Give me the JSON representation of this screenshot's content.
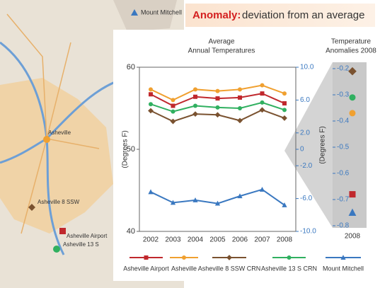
{
  "banner": {
    "term": "Anomaly:",
    "definition": "deviation from an average"
  },
  "map": {
    "labels": [
      "Mount Mitchell",
      "Asheville",
      "Asheville 8 SSW",
      "Asheville Airport",
      "Asheville 13 S"
    ]
  },
  "chart_data": [
    {
      "type": "line",
      "title": [
        "Average",
        "Annual Temperatures"
      ],
      "y_label": "(Degrees F)",
      "categories": [
        "2002",
        "2003",
        "2004",
        "2005",
        "2006",
        "2007",
        "2008"
      ],
      "ylim": [
        40,
        60
      ],
      "yticks": [
        40,
        50,
        60
      ],
      "y2lim": [
        -10,
        10
      ],
      "y2ticks": [
        {
          "value": 10,
          "label": "10.0"
        },
        {
          "value": 6,
          "label": "6.0"
        },
        {
          "value": 2,
          "label": "2.0"
        },
        0,
        {
          "value": -2,
          "label": "-2.0"
        },
        {
          "value": -6,
          "label": "-6.0"
        },
        {
          "value": -10,
          "label": "-10.0"
        }
      ],
      "series": [
        {
          "name": "Asheville Airport",
          "color": "#c0282d",
          "marker": "square",
          "values": [
            56.7,
            55.3,
            56.4,
            56.2,
            56.3,
            56.8,
            55.6
          ]
        },
        {
          "name": "Asheville",
          "color": "#f0a030",
          "marker": "circle",
          "values": [
            57.3,
            56.0,
            57.3,
            57.1,
            57.3,
            57.8,
            56.8
          ]
        },
        {
          "name": "Asheville 8 SSW CRN",
          "color": "#7a5230",
          "marker": "diamond",
          "values": [
            54.7,
            53.4,
            54.3,
            54.2,
            53.5,
            54.8,
            53.8
          ]
        },
        {
          "name": "Asheville 13 S CRN",
          "color": "#30b060",
          "marker": "circle",
          "values": [
            55.5,
            54.6,
            55.3,
            55.1,
            55.0,
            55.7,
            54.8
          ]
        },
        {
          "name": "Mount Mitchell",
          "color": "#3a78c0",
          "marker": "triangle",
          "values": [
            44.8,
            43.5,
            43.8,
            43.4,
            44.3,
            45.1,
            43.2
          ]
        }
      ]
    },
    {
      "type": "dot",
      "title": [
        "Temperature",
        "Anomalies 2008"
      ],
      "y_label": "(Degrees F)",
      "categories": [
        "2008"
      ],
      "ylim": [
        -0.8,
        -0.2
      ],
      "yticks": [
        -0.2,
        -0.3,
        -0.4,
        -0.5,
        -0.6,
        -0.7,
        -0.8
      ],
      "series": [
        {
          "color": "#7a5230",
          "marker": "diamond",
          "values": [
            -0.21
          ]
        },
        {
          "color": "#30b060",
          "marker": "circle",
          "values": [
            -0.31
          ]
        },
        {
          "color": "#f0a030",
          "marker": "circle",
          "values": [
            -0.37
          ]
        },
        {
          "color": "#c0282d",
          "marker": "square",
          "values": [
            -0.68
          ]
        },
        {
          "color": "#3a78c0",
          "marker": "triangle",
          "values": [
            -0.75
          ]
        }
      ]
    }
  ]
}
